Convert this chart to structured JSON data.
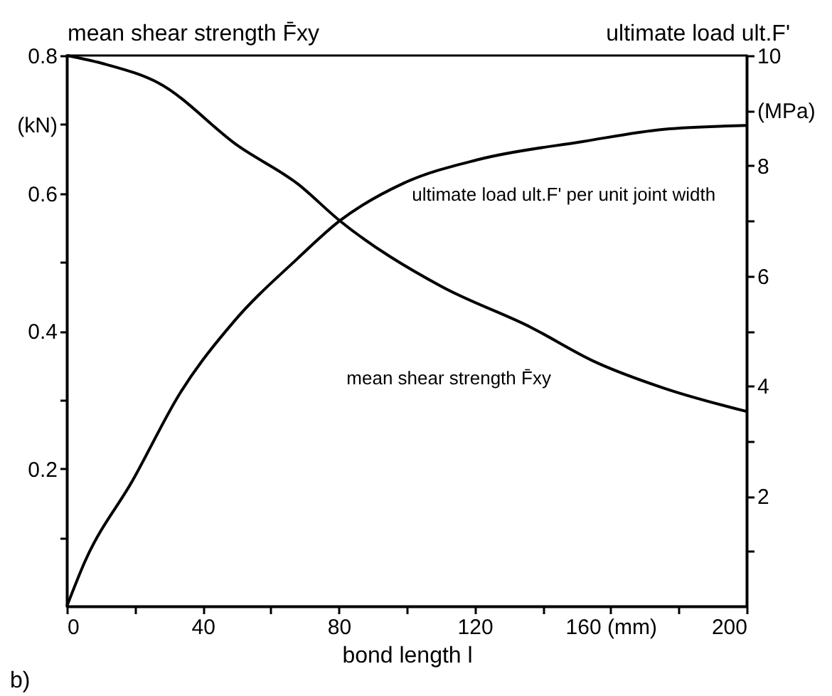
{
  "chart_data": {
    "type": "line",
    "ylabel": "mean shear strength F̄xy",
    "y2label": "ultimate load ult.F'",
    "xlabel": "bond length l",
    "x": [
      0,
      5.3,
      11.6,
      19.4,
      27,
      33.4,
      49,
      50.6,
      67.8,
      80.3,
      99,
      110,
      121,
      136.6,
      152,
      155,
      175.6,
      200
    ],
    "series": [
      {
        "color": "#000000",
        "values": [
          0.8,
          null,
          0.787,
          null,
          0.76,
          null,
          null,
          0.668,
          0.614,
          0.56,
          null,
          0.465,
          null,
          0.405,
          null,
          0.356,
          0.317,
          0.283
        ]
      },
      {
        "color": "#000000",
        "axis": "y2",
        "values": [
          0,
          0.81,
          null,
          2.29,
          null,
          3.88,
          5.16,
          null,
          6.31,
          7.0,
          7.68,
          null,
          8.11,
          null,
          8.44,
          null,
          8.66,
          8.73
        ]
      }
    ],
    "xlim": [
      0,
      200
    ],
    "xticks": [
      0,
      {
        "value": 20,
        "label": null
      },
      40,
      {
        "value": 60,
        "label": null
      },
      80,
      {
        "value": 100,
        "label": null
      },
      120,
      {
        "value": 140,
        "label": null
      },
      {
        "value": 160,
        "label": "160 (mm)"
      },
      {
        "value": 180,
        "label": null
      },
      200
    ],
    "ylim": [
      0,
      0.8
    ],
    "yticks": [
      {
        "value": 0.1,
        "label": null
      },
      0.2,
      {
        "value": 0.3,
        "label": null
      },
      0.4,
      {
        "value": 0.5,
        "label": null
      },
      0.6,
      {
        "value": 0.7,
        "label": "(kN)"
      },
      0.8
    ],
    "y2lim": [
      0,
      10
    ],
    "y2ticks": [
      {
        "value": 1,
        "label": null
      },
      2,
      {
        "value": 3,
        "label": null
      },
      4,
      {
        "value": 5,
        "label": null
      },
      6,
      {
        "value": 7,
        "label": null
      },
      8,
      {
        "value": 9,
        "label": "(MPa)"
      },
      10
    ],
    "annotations": [
      {
        "text": "ultimate load ult.F' per unit joint width",
        "x": 99,
        "y": 0.614
      },
      {
        "text": "mean shear strength F̄xy",
        "x": 155,
        "y": 0.356
      },
      "b)"
    ],
    "grid": false,
    "marker": "none",
    "line_style": "solid"
  }
}
